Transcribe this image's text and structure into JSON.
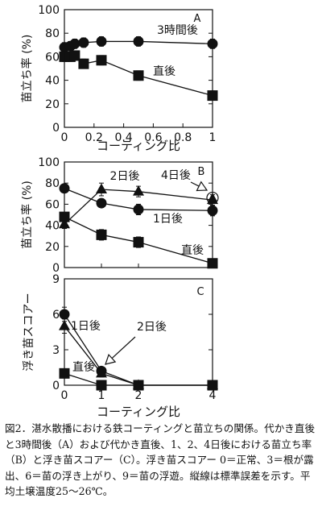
{
  "chart_data": [
    {
      "panel": "A",
      "type": "line",
      "xlabel": "コーティング比",
      "ylabel": "苗立ち率 (%)",
      "xlim": [
        0,
        1
      ],
      "ylim": [
        0,
        100
      ],
      "xticks": [
        0,
        0.2,
        0.4,
        0.6,
        0.8,
        1
      ],
      "xtick_labels": [
        "0",
        "0.2",
        "0.4",
        "0.6",
        "0.8",
        "1"
      ],
      "yticks": [
        0,
        20,
        40,
        60,
        80,
        100
      ],
      "ytick_labels": [
        "0",
        "20",
        "40",
        "60",
        "80",
        "100"
      ],
      "series": [
        {
          "name": "3時間後",
          "marker": "circle",
          "x": [
            0,
            0.04,
            0.07,
            0.13,
            0.25,
            0.5,
            1
          ],
          "y": [
            68,
            69,
            71,
            72,
            73,
            73,
            71
          ],
          "err": [
            4,
            4,
            4,
            4,
            4,
            4,
            4
          ]
        },
        {
          "name": "直後",
          "marker": "square",
          "x": [
            0,
            0.04,
            0.07,
            0.13,
            0.25,
            0.5,
            1
          ],
          "y": [
            60,
            60,
            61,
            54,
            57,
            44,
            27
          ],
          "err": [
            4,
            4,
            4,
            4,
            4,
            4,
            4
          ]
        }
      ],
      "annotations": [
        {
          "text": "3時間後",
          "series": 0,
          "arrow": false
        },
        {
          "text": "直後",
          "series": 1,
          "arrow": false
        }
      ]
    },
    {
      "panel": "B",
      "type": "line",
      "xlabel": "",
      "ylabel": "苗立ち率 (%)",
      "xlim": [
        0,
        4
      ],
      "ylim": [
        0,
        100
      ],
      "xticks": [
        0,
        1,
        2,
        4
      ],
      "xtick_labels": [],
      "yticks": [
        0,
        20,
        40,
        60,
        80,
        100
      ],
      "ytick_labels": [
        "0",
        "20",
        "40",
        "60",
        "80",
        "100"
      ],
      "series": [
        {
          "name": "2日後",
          "marker": "triangle",
          "x": [
            0,
            1,
            2,
            4
          ],
          "y": [
            41,
            74,
            72,
            64
          ],
          "err": [
            4,
            6,
            5,
            5
          ]
        },
        {
          "name": "4日後",
          "marker": "triangle-open",
          "x": [
            4
          ],
          "y": [
            66
          ],
          "err": [
            0
          ]
        },
        {
          "name": "1日後",
          "marker": "circle",
          "x": [
            0,
            1,
            2,
            4
          ],
          "y": [
            75,
            61,
            55,
            54
          ],
          "err": [
            4,
            4,
            5,
            5
          ]
        },
        {
          "name": "直後",
          "marker": "square",
          "x": [
            0,
            1,
            2,
            4
          ],
          "y": [
            48,
            31,
            24,
            4
          ],
          "err": [
            4,
            5,
            5,
            4
          ]
        }
      ],
      "annotations": [
        {
          "text": "2日後",
          "series": 0,
          "arrow": false
        },
        {
          "text": "4日後",
          "series": 1,
          "arrow": true
        },
        {
          "text": "1日後",
          "series": 2,
          "arrow": false
        },
        {
          "text": "直後",
          "series": 3,
          "arrow": false
        }
      ]
    },
    {
      "panel": "C",
      "type": "line",
      "xlabel": "コーティング比",
      "ylabel": "浮き苗スコアー",
      "xlim": [
        0,
        4
      ],
      "ylim": [
        0,
        9
      ],
      "xticks": [
        0,
        1,
        2,
        4
      ],
      "xtick_labels": [
        "0",
        "1",
        "2",
        "4"
      ],
      "yticks": [
        0,
        3,
        6,
        9
      ],
      "ytick_labels": [
        "0",
        "3",
        "6",
        "9"
      ],
      "series": [
        {
          "name": "1日後",
          "marker": "circle",
          "x": [
            0,
            1,
            2,
            4
          ],
          "y": [
            6,
            1.2,
            0,
            0
          ],
          "err": [
            0.6,
            0.3,
            0,
            0
          ]
        },
        {
          "name": "2日後",
          "marker": "triangle",
          "x": [
            0,
            1,
            2,
            4
          ],
          "y": [
            5,
            1,
            0,
            0
          ],
          "err": [
            0.6,
            0.3,
            0,
            0
          ]
        },
        {
          "name": "直後",
          "marker": "square",
          "x": [
            0,
            1,
            2,
            4
          ],
          "y": [
            1,
            0,
            0,
            0
          ],
          "err": [
            0.3,
            0,
            0,
            0
          ]
        }
      ],
      "annotations": [
        {
          "text": "1日後",
          "series": 0,
          "arrow": false
        },
        {
          "text": "2日後",
          "series": 1,
          "arrow": true
        },
        {
          "text": "直後",
          "series": 2,
          "arrow": false
        }
      ]
    }
  ],
  "caption": "図2．湛水散播における鉄コーティングと苗立ちの関係。代かき直後と3時間後（A）および代かき直後、1、2、4日後における苗立ち率（B）と浮き苗スコアー（C）。浮き苗スコアー 0＝正常、3＝根が露出、6＝苗の浮き上がり、9＝苗の浮遊。縦線は標準誤差を示す。平均土壌温度25～26℃。"
}
